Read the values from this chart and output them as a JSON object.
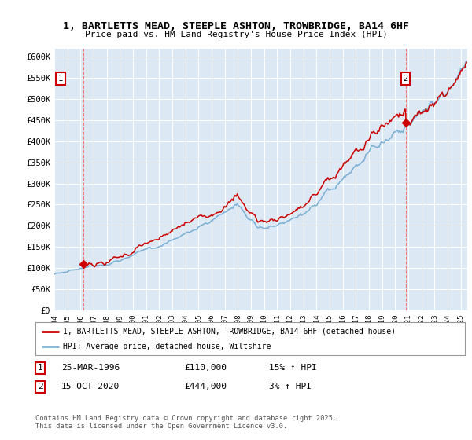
{
  "title": "1, BARTLETTS MEAD, STEEPLE ASHTON, TROWBRIDGE, BA14 6HF",
  "subtitle": "Price paid vs. HM Land Registry's House Price Index (HPI)",
  "ylim": [
    0,
    620000
  ],
  "yticks": [
    0,
    50000,
    100000,
    150000,
    200000,
    250000,
    300000,
    350000,
    400000,
    450000,
    500000,
    550000,
    600000
  ],
  "x_start_year": 1994,
  "x_end_year": 2025,
  "sale1_year": 1996.23,
  "sale1_price": 110000,
  "sale2_year": 2020.79,
  "sale2_price": 444000,
  "red_color": "#cc0000",
  "blue_color": "#7bafd4",
  "vline_color": "#ff6666",
  "legend_label1": "1, BARTLETTS MEAD, STEEPLE ASHTON, TROWBRIDGE, BA14 6HF (detached house)",
  "legend_label2": "HPI: Average price, detached house, Wiltshire",
  "annotation1_label": "1",
  "annotation1_date": "25-MAR-1996",
  "annotation1_price": "£110,000",
  "annotation1_hpi": "15% ↑ HPI",
  "annotation2_label": "2",
  "annotation2_date": "15-OCT-2020",
  "annotation2_price": "£444,000",
  "annotation2_hpi": "3% ↑ HPI",
  "footer": "Contains HM Land Registry data © Crown copyright and database right 2025.\nThis data is licensed under the Open Government Licence v3.0.",
  "background_color": "#ffffff",
  "plot_bg_color": "#dce9f5"
}
